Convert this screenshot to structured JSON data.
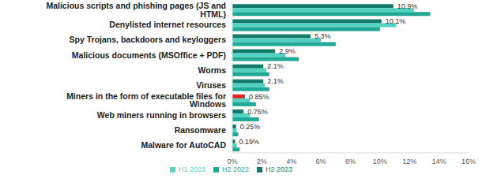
{
  "chart_data": {
    "type": "bar",
    "orientation": "horizontal",
    "grid": false,
    "legend": "bottom",
    "data_labels": true,
    "categories": [
      "Malicious scripts and phishing pages (JS and HTML)",
      "Denylisted internet resources",
      "Spy Trojans, backdoors and keyloggers",
      "Malicious documents (MSOffice + PDF)",
      "Worms",
      "Viruses",
      "Miners in the form of executable files for Windows",
      "Web miners running in browsers",
      "Ransomware",
      "Malware for AutoCAD"
    ],
    "series": [
      {
        "name": "H2 2023",
        "color": "#137a6c",
        "colors": [
          "#137a6c",
          "#137a6c",
          "#137a6c",
          "#137a6c",
          "#137a6c",
          "#137a6c",
          "#e02424",
          "#137a6c",
          "#137a6c",
          "#137a6c"
        ],
        "values": [
          10.9,
          10.1,
          5.3,
          2.9,
          2.1,
          2.1,
          0.85,
          0.76,
          0.25,
          0.19
        ],
        "value_labels": [
          "10.9%",
          "10.1%",
          "5.3%",
          "2.9%",
          "2.1%",
          "2.1%",
          "0.85%",
          "0.76%",
          "0.25%",
          "0.19%"
        ]
      },
      {
        "name": "H1 2023",
        "color": "#52d3c2",
        "values": [
          12.3,
          11.1,
          6.0,
          3.6,
          2.3,
          2.2,
          1.2,
          1.2,
          0.3,
          0.3
        ]
      },
      {
        "name": "H2 2022",
        "color": "#22a896",
        "values": [
          13.4,
          10.0,
          7.0,
          4.5,
          2.5,
          2.5,
          1.6,
          1.8,
          0.4,
          0.5
        ]
      }
    ],
    "xlim": [
      0,
      16
    ],
    "xticks": [
      {
        "value": 0,
        "label": "0%"
      },
      {
        "value": 2,
        "label": "2%"
      },
      {
        "value": 4,
        "label": "4%"
      },
      {
        "value": 6,
        "label": "6%"
      },
      {
        "value": 8,
        "label": "8%"
      },
      {
        "value": 10,
        "label": "10%"
      },
      {
        "value": 12,
        "label": "12%"
      },
      {
        "value": 14,
        "label": "14%"
      },
      {
        "value": 16,
        "label": "16%"
      }
    ]
  }
}
